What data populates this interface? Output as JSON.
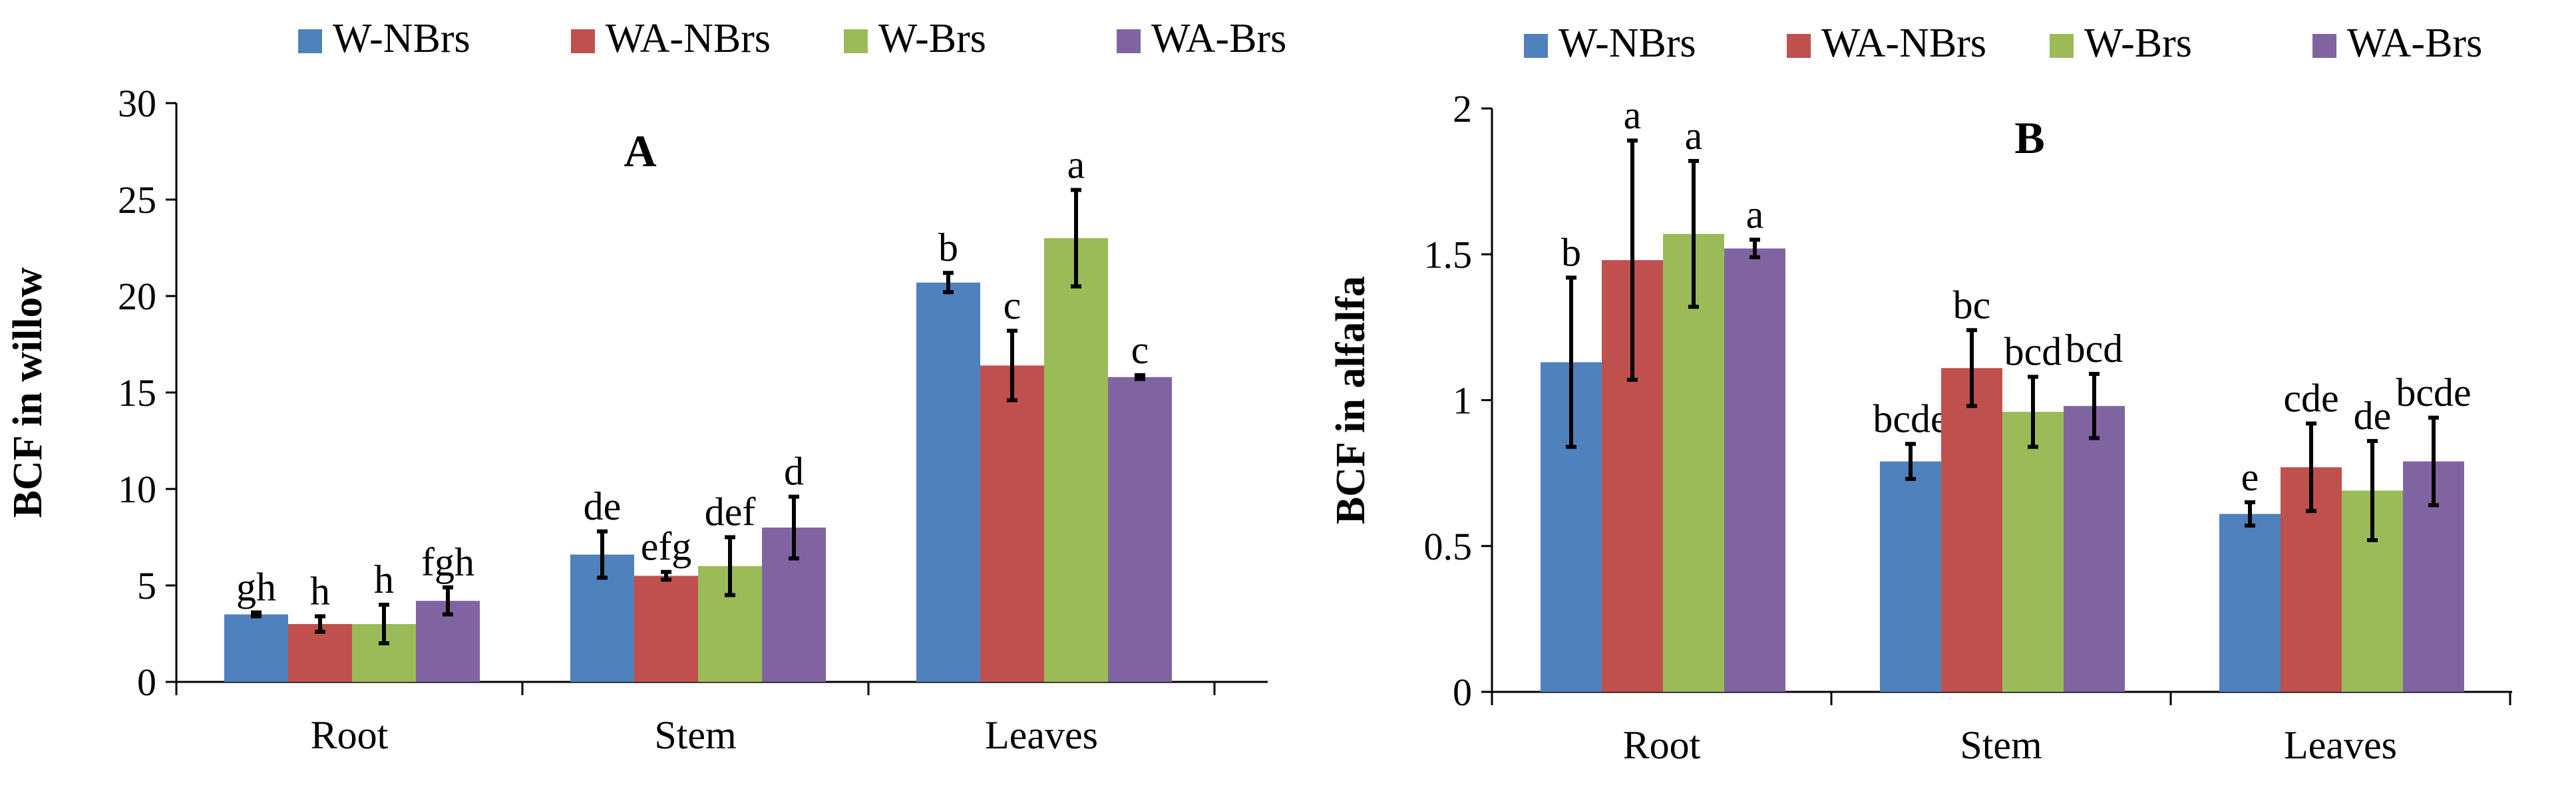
{
  "legend_colors": {
    "W-NBrs": "#4f81bd",
    "WA-NBrs": "#c0504d",
    "W-Brs": "#9bbb59",
    "WA-Brs": "#8064a2"
  },
  "chart_data": [
    {
      "type": "bar",
      "panel": "A",
      "title": "A",
      "xlabel": "",
      "ylabel": "BCF in willow",
      "ylim": [
        0,
        30
      ],
      "yticks": [
        0,
        5,
        10,
        15,
        20,
        25,
        30
      ],
      "categories": [
        "Root",
        "Stem",
        "Leaves"
      ],
      "legend_position": "top",
      "series": [
        {
          "name": "W-NBrs",
          "values": [
            3.5,
            6.6,
            20.7
          ],
          "errors": [
            0.1,
            1.2,
            0.5
          ],
          "labels": [
            "gh",
            "de",
            "b"
          ]
        },
        {
          "name": "WA-NBrs",
          "values": [
            3.0,
            5.5,
            16.4
          ],
          "errors": [
            0.4,
            0.2,
            1.8
          ],
          "labels": [
            "h",
            "efg",
            "c"
          ]
        },
        {
          "name": "W-Brs",
          "values": [
            3.0,
            6.0,
            23.0
          ],
          "errors": [
            1.0,
            1.5,
            2.5
          ],
          "labels": [
            "h",
            "def",
            "a"
          ]
        },
        {
          "name": "WA-Brs",
          "values": [
            4.2,
            8.0,
            15.8
          ],
          "errors": [
            0.7,
            1.6,
            0.1
          ],
          "labels": [
            "fgh",
            "d",
            "c"
          ]
        }
      ]
    },
    {
      "type": "bar",
      "panel": "B",
      "title": "B",
      "xlabel": "",
      "ylabel": "BCF in alfalfa",
      "ylim": [
        0,
        2
      ],
      "yticks": [
        0,
        0.5,
        1,
        1.5,
        2
      ],
      "categories": [
        "Root",
        "Stem",
        "Leaves"
      ],
      "legend_position": "top",
      "series": [
        {
          "name": "W-NBrs",
          "values": [
            1.13,
            0.79,
            0.61
          ],
          "errors": [
            0.29,
            0.06,
            0.04
          ],
          "labels": [
            "b",
            "bcde",
            "e"
          ]
        },
        {
          "name": "WA-NBrs",
          "values": [
            1.48,
            1.11,
            0.77
          ],
          "errors": [
            0.41,
            0.13,
            0.15
          ],
          "labels": [
            "a",
            "bc",
            "cde"
          ]
        },
        {
          "name": "W-Brs",
          "values": [
            1.57,
            0.96,
            0.69
          ],
          "errors": [
            0.25,
            0.12,
            0.17
          ],
          "labels": [
            "a",
            "bcd",
            "de"
          ]
        },
        {
          "name": "WA-Brs",
          "values": [
            1.52,
            0.98,
            0.79
          ],
          "errors": [
            0.03,
            0.11,
            0.15
          ],
          "labels": [
            "a",
            "bcd",
            "bcde"
          ]
        }
      ]
    }
  ]
}
